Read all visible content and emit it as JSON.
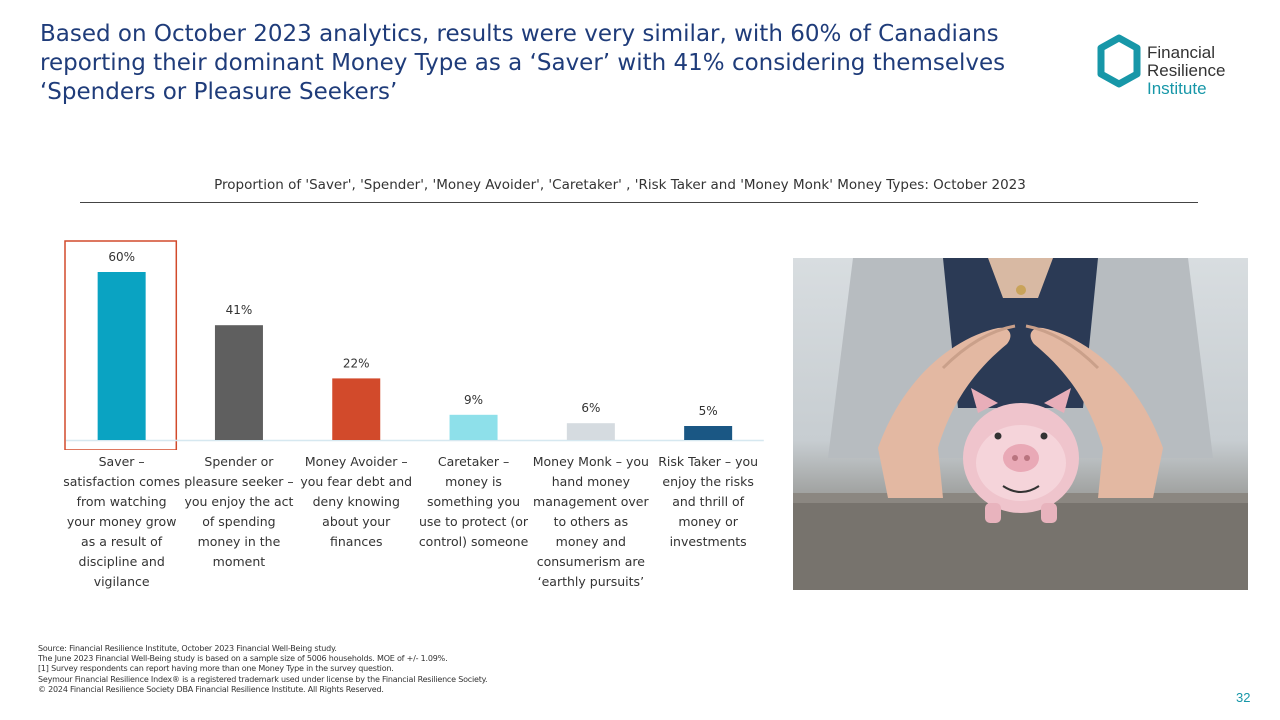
{
  "headline": "Based on October 2023 analytics, results were very similar, with 60% of Canadians reporting their dominant Money Type as a ‘Saver’ with 41% considering themselves ‘Spenders or Pleasure Seekers’",
  "logo": {
    "line1": "Financial",
    "line2": "Resilience",
    "line3": "Institute",
    "color": "#1797a8"
  },
  "chart_data": {
    "type": "bar",
    "title": "Proportion of 'Saver', 'Spender', 'Money Avoider', 'Caretaker' , 'Risk Taker and 'Money Monk' Money Types: October 2023",
    "categories": [
      "Saver – satisfaction comes from watching your money grow as a result of discipline and vigilance",
      "Spender or pleasure seeker – you enjoy the act of spending money in the moment",
      "Money Avoider – you fear debt and deny knowing about your finances",
      "Caretaker – money is something you use to protect (or control) someone",
      "Money Monk – you hand money management over to others as money and consumerism are ‘earthly pursuits’",
      "Risk Taker – you enjoy the risks and thrill of money or investments"
    ],
    "values": [
      60,
      41,
      22,
      9,
      6,
      5
    ],
    "value_labels": [
      "60%",
      "41%",
      "22%",
      "9%",
      "6%",
      "5%"
    ],
    "bar_colors": [
      "#0aa3c2",
      "#5f5f5f",
      "#d24a2b",
      "#8ee0ea",
      "#d5dbe0",
      "#1a5784"
    ],
    "highlight_index": 0,
    "highlight_color": "#d24a2b",
    "ylim": [
      0,
      60
    ],
    "xlabel": "",
    "ylabel": "",
    "grid": false,
    "legend": "none"
  },
  "footnotes": [
    "Source: Financial Resilience Institute, October 2023 Financial Well-Being study.",
    "The June 2023 Financial Well-Being study is based on a sample size of 5006 households. MOE of +/- 1.09%.",
    "[1]  Survey respondents can report having more than one Money Type in the survey question.",
    "Seymour Financial Resilience Index® is a registered trademark used under license by the Financial Resilience Society.",
    "© 2024 Financial Resilience Society DBA Financial Resilience Institute. All Rights Reserved."
  ],
  "page_number": "32"
}
